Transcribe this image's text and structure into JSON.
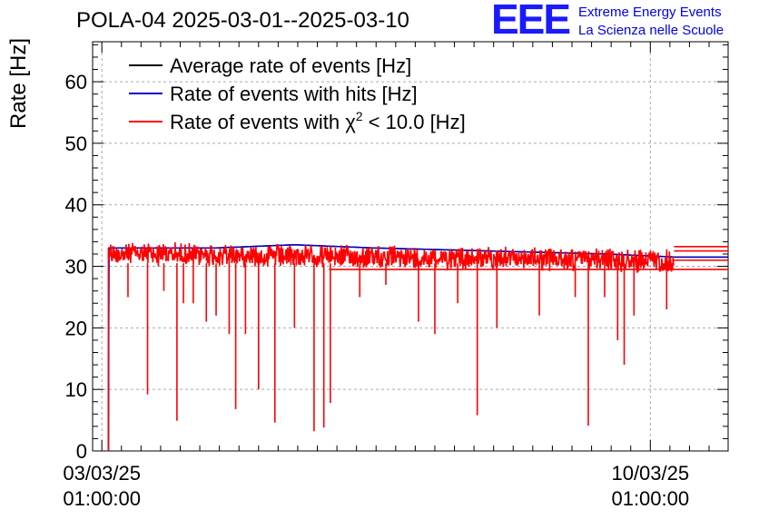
{
  "header": {
    "title": "POLA-04 2025-03-01--2025-03-10",
    "logo": "EEE",
    "logo_line1": "Extreme Energy Events",
    "logo_line2": "La Scienza nelle Scuole"
  },
  "chart_data": {
    "type": "line",
    "ylabel": "Rate [Hz]",
    "ylim": [
      0,
      66.5
    ],
    "yticks": [
      0,
      10,
      20,
      30,
      40,
      50,
      60
    ],
    "xlim": [
      "2025-03-02T22:10",
      "2025-03-11T00:50"
    ],
    "xticks": [
      {
        "x": "2025-03-03T01:00",
        "date": "03/03/25",
        "time": "01:00:00"
      },
      {
        "x": "2025-03-10T01:00",
        "date": "10/03/25",
        "time": "01:00:00"
      }
    ],
    "grid": true,
    "legend_position": "top-left",
    "series": [
      {
        "name": "Average rate of events [Hz]",
        "color": "#000000",
        "values": [
          [
            "2025-03-03T03:00",
            0
          ],
          [
            "2025-03-03T03:10",
            33
          ],
          [
            "2025-03-04T12:00",
            33
          ],
          [
            "2025-03-05T12:00",
            33.5
          ],
          [
            "2025-03-06T12:00",
            33
          ],
          [
            "2025-03-08T00:00",
            32.5
          ],
          [
            "2025-03-09T12:00",
            32
          ],
          [
            "2025-03-10T09:00",
            31.5
          ],
          [
            "2025-03-11T00:50",
            31.5
          ]
        ]
      },
      {
        "name": "Rate of events with hits [Hz]",
        "color": "#0000cc",
        "values": [
          [
            "2025-03-03T03:00",
            0
          ],
          [
            "2025-03-03T03:10",
            33
          ],
          [
            "2025-03-04T12:00",
            33
          ],
          [
            "2025-03-05T12:00",
            33.5
          ],
          [
            "2025-03-06T12:00",
            33
          ],
          [
            "2025-03-08T00:00",
            32.5
          ],
          [
            "2025-03-09T12:00",
            32
          ],
          [
            "2025-03-10T09:00",
            31.5
          ],
          [
            "2025-03-11T00:50",
            31.5
          ]
        ]
      },
      {
        "name": "Rate of events with χ² < 10.0 [Hz]",
        "legend_text": "Rate of events with χ",
        "legend_sup": "2",
        "legend_tail": " < 10.0 [Hz]",
        "color": "#ff0000",
        "band": {
          "start": "2025-03-03T03:00",
          "end": "2025-03-10T08:15",
          "low": 29.5,
          "high": 34.5
        },
        "dips": [
          [
            "2025-03-03T09:00",
            25
          ],
          [
            "2025-03-03T15:00",
            9.2
          ],
          [
            "2025-03-03T20:00",
            26
          ],
          [
            "2025-03-04T00:00",
            4.9
          ],
          [
            "2025-03-04T02:00",
            24
          ],
          [
            "2025-03-04T05:00",
            24
          ],
          [
            "2025-03-04T09:00",
            21
          ],
          [
            "2025-03-04T12:00",
            22
          ],
          [
            "2025-03-04T16:00",
            19
          ],
          [
            "2025-03-04T18:00",
            6.8
          ],
          [
            "2025-03-04T21:00",
            19
          ],
          [
            "2025-03-05T01:00",
            10
          ],
          [
            "2025-03-05T06:00",
            4.6
          ],
          [
            "2025-03-05T12:00",
            20
          ],
          [
            "2025-03-05T18:00",
            3.2
          ],
          [
            "2025-03-05T21:00",
            3.8
          ],
          [
            "2025-03-05T23:00",
            7.8
          ],
          [
            "2025-03-06T08:00",
            25
          ],
          [
            "2025-03-06T16:00",
            27
          ],
          [
            "2025-03-07T02:00",
            21
          ],
          [
            "2025-03-07T07:00",
            19
          ],
          [
            "2025-03-07T14:00",
            24
          ],
          [
            "2025-03-07T20:00",
            5.8
          ],
          [
            "2025-03-08T02:00",
            20
          ],
          [
            "2025-03-08T15:00",
            22
          ],
          [
            "2025-03-09T02:00",
            25
          ],
          [
            "2025-03-09T06:00",
            4.1
          ],
          [
            "2025-03-09T11:00",
            25
          ],
          [
            "2025-03-09T15:00",
            18
          ],
          [
            "2025-03-09T17:00",
            14
          ],
          [
            "2025-03-09T20:00",
            22
          ],
          [
            "2025-03-10T06:00",
            23
          ]
        ],
        "values": [
          [
            "2025-03-03T03:00",
            0
          ],
          [
            "2025-03-10T08:15",
            31
          ],
          [
            "2025-03-11T00:50",
            29.5
          ],
          [
            "2025-03-11T00:50",
            31
          ],
          [
            "2025-03-11T00:50",
            32.5
          ],
          [
            "2025-03-11T00:50",
            33.2
          ]
        ]
      }
    ]
  }
}
